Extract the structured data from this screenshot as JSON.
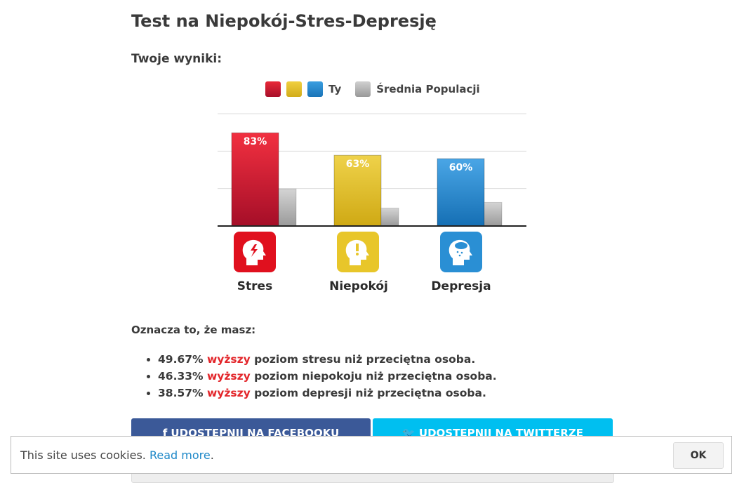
{
  "title": "Test na Niepokój-Stres-Depresję",
  "subtitle": "Twoje wyniki:",
  "chart_data": {
    "type": "bar",
    "categories": [
      "Stres",
      "Niepokój",
      "Depresja"
    ],
    "series": [
      {
        "name": "Ty",
        "values": [
          83,
          63,
          60
        ],
        "colors": [
          "#d81e2e",
          "#e6c32a",
          "#2a8fd4"
        ]
      },
      {
        "name": "Średnia Populacji",
        "values": [
          33,
          16,
          21
        ],
        "color": "#b0b0b0"
      }
    ],
    "data_labels": [
      "83%",
      "63%",
      "60%"
    ],
    "ylim": [
      0,
      100
    ],
    "grid": true,
    "legend": "top"
  },
  "legend": {
    "you": "Ty",
    "population": "Średnia Populacji"
  },
  "means_label": "Oznacza to, że masz:",
  "results": [
    {
      "pct": "49.67%",
      "word": "wyższy",
      "rest": "poziom stresu niż przeciętna osoba."
    },
    {
      "pct": "46.33%",
      "word": "wyższy",
      "rest": "poziom niepokoju niż przeciętna osoba."
    },
    {
      "pct": "38.57%",
      "word": "wyższy",
      "rest": "poziom depresji niż przeciętna osoba."
    }
  ],
  "share": {
    "facebook": "f  UDOSTĘPNIJ NA FACEBOOKU",
    "twitter": "🐦 UDOSTĘPNIJ NA TWITTERZE"
  },
  "cookie": {
    "text": "This site uses cookies.",
    "link": "Read more",
    "period": ".",
    "ok": "OK"
  }
}
